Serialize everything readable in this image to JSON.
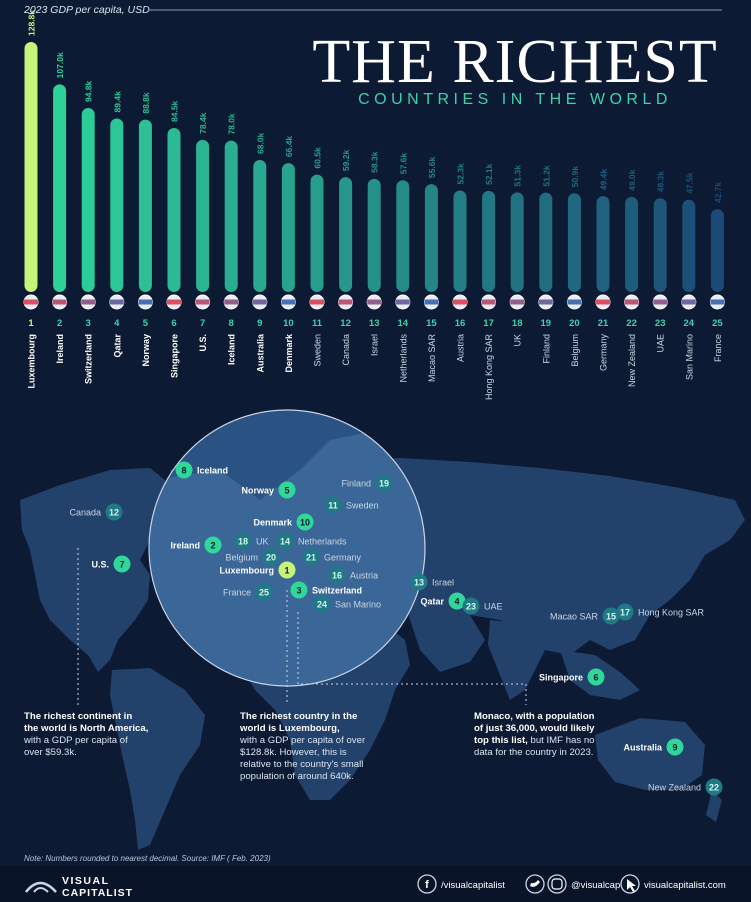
{
  "header": {
    "unit_label": "2023 GDP per capita, USD",
    "title": "THE RICHEST",
    "subtitle": "COUNTRIES IN THE WORLD"
  },
  "colors": {
    "background": "#0d1a33",
    "top_bar": "#c9f27a",
    "bar_high": "#2fd89a",
    "bar_low": "#1c4a78",
    "map_land": "#22416b",
    "marker_fill": "#22b384",
    "marker_top": "#c9f27a"
  },
  "chart_data": {
    "type": "bar",
    "ylabel": "2023 GDP per capita, USD",
    "ranks": [
      "1",
      "2",
      "3",
      "4",
      "5",
      "6",
      "7",
      "8",
      "9",
      "10",
      "11",
      "12",
      "13",
      "14",
      "15",
      "16",
      "17",
      "18",
      "19",
      "20",
      "21",
      "22",
      "23",
      "24",
      "25"
    ],
    "categories": [
      "Luxembourg",
      "Ireland",
      "Switzerland",
      "Qatar",
      "Norway",
      "Singapore",
      "U.S.",
      "Iceland",
      "Australia",
      "Denmark",
      "Sweden",
      "Canada",
      "Israel",
      "Netherlands",
      "Macao SAR",
      "Austria",
      "Hong Kong SAR",
      "UK",
      "Finland",
      "Belgium",
      "Germany",
      "New Zealand",
      "UAE",
      "San Marino",
      "France"
    ],
    "values": [
      128.8,
      107.0,
      94.8,
      89.4,
      88.8,
      84.5,
      78.4,
      78.0,
      68.0,
      66.4,
      60.5,
      59.2,
      58.3,
      57.6,
      55.6,
      52.3,
      52.1,
      51.3,
      51.2,
      50.9,
      49.4,
      49.0,
      48.3,
      47.5,
      42.7
    ],
    "value_labels": [
      "128.8k",
      "107.0k",
      "94.8k",
      "89.4k",
      "88.8k",
      "84.5k",
      "78.4k",
      "78.0k",
      "68.0k",
      "66.4k",
      "60.5k",
      "59.2k",
      "58.3k",
      "57.6k",
      "55.6k",
      "52.3k",
      "52.1k",
      "51.3k",
      "51.2k",
      "50.9k",
      "49.4k",
      "49.0k",
      "48.3k",
      "47.5k",
      "42.7k"
    ],
    "ylim": [
      0,
      128.8
    ]
  },
  "map": {
    "markers": [
      {
        "rank": "8",
        "name": "Iceland"
      },
      {
        "rank": "5",
        "name": "Norway"
      },
      {
        "rank": "19",
        "name": "Finland"
      },
      {
        "rank": "11",
        "name": "Sweden"
      },
      {
        "rank": "10",
        "name": "Denmark"
      },
      {
        "rank": "12",
        "name": "Canada"
      },
      {
        "rank": "2",
        "name": "Ireland"
      },
      {
        "rank": "18",
        "name": "UK"
      },
      {
        "rank": "14",
        "name": "Netherlands"
      },
      {
        "rank": "20",
        "name": "Belgium"
      },
      {
        "rank": "21",
        "name": "Germany"
      },
      {
        "rank": "7",
        "name": "U.S."
      },
      {
        "rank": "1",
        "name": "Luxembourg"
      },
      {
        "rank": "16",
        "name": "Austria"
      },
      {
        "rank": "3",
        "name": "Switzerland"
      },
      {
        "rank": "25",
        "name": "France"
      },
      {
        "rank": "24",
        "name": "San Marino"
      },
      {
        "rank": "13",
        "name": "Israel"
      },
      {
        "rank": "4",
        "name": "Qatar"
      },
      {
        "rank": "23",
        "name": "UAE"
      },
      {
        "rank": "15",
        "name": "Macao SAR"
      },
      {
        "rank": "17",
        "name": "Hong Kong SAR"
      },
      {
        "rank": "6",
        "name": "Singapore"
      },
      {
        "rank": "9",
        "name": "Australia"
      },
      {
        "rank": "22",
        "name": "New Zealand"
      }
    ]
  },
  "annotations": {
    "na_bold": [
      "The richest continent in",
      "the world is North America,"
    ],
    "na_text": [
      "with a GDP per capita of",
      "over $59.3k."
    ],
    "lux_bold": [
      "The richest country in the",
      "world is Luxembourg,"
    ],
    "lux_text": [
      "with a GDP per capita of over",
      "$128.8k. However, this is",
      "relative to the country's small",
      "population of around 640k."
    ],
    "monaco_bold": [
      "Monaco, with a population",
      "of just 36,000, would likely"
    ],
    "monaco_mixed": {
      "bold": "top this list,",
      "text": " but IMF has no"
    },
    "monaco_text": [
      "data for the country in 2023."
    ]
  },
  "footer": {
    "note": "Note: Numbers rounded to nearest decimal. Source: IMF ( Feb. 2023)",
    "brand_top": "VISUAL",
    "brand_bottom": "CAPITALIST",
    "facebook": "/visualcapitalist",
    "social": "@visualcap",
    "website": "visualcapitalist.com",
    "facebook_icon": "facebook-icon",
    "social_icon": "twitter-instagram-icon",
    "website_icon": "cursor-icon"
  }
}
